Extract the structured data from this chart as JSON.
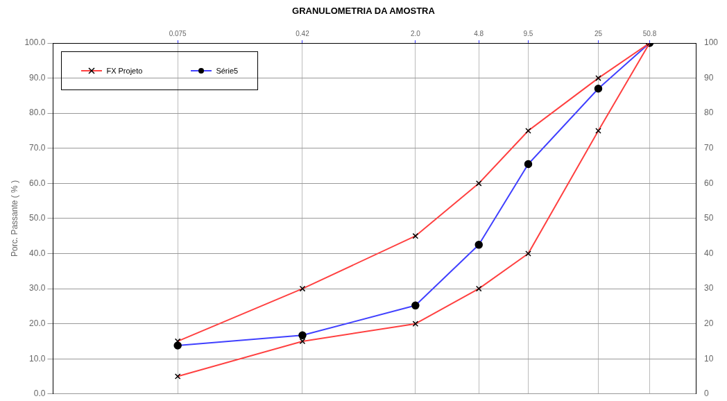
{
  "chart_data": {
    "type": "line",
    "title": "GRANULOMETRIA DA AMOSTRA",
    "ylabel": "Porc. Passante ( % )",
    "x": [
      0.075,
      0.42,
      2.0,
      4.8,
      9.5,
      25,
      50.8
    ],
    "series": [
      {
        "name": "FX Projeto",
        "color": "#ff4040",
        "marker": "cross",
        "values": [
          15,
          30,
          45,
          60,
          75,
          90,
          100
        ]
      },
      {
        "color": "#ff4040",
        "marker": "cross",
        "values": [
          5,
          15,
          20,
          30,
          40,
          75,
          100
        ]
      },
      {
        "name": "Série5",
        "color": "#4040ff",
        "marker": "circle",
        "values": [
          13.8,
          16.7,
          25.2,
          42.5,
          65.5,
          87,
          100
        ]
      }
    ],
    "xlim": [
      0.0134,
      97
    ],
    "log": "x",
    "xticks": [
      0.075,
      0.42,
      {
        "value": 2.0,
        "label": "2.0"
      },
      4.8,
      9.5,
      25,
      50.8
    ],
    "ylim": [
      0,
      100
    ],
    "yticks": [
      {
        "value": 0,
        "label": "0.0"
      },
      {
        "value": 10,
        "label": "10.0"
      },
      {
        "value": 20,
        "label": "20.0"
      },
      {
        "value": 30,
        "label": "30.0"
      },
      {
        "value": 40,
        "label": "40.0"
      },
      {
        "value": 50,
        "label": "50.0"
      },
      {
        "value": 60,
        "label": "60.0"
      },
      {
        "value": 70,
        "label": "70.0"
      },
      {
        "value": 80,
        "label": "80.0"
      },
      {
        "value": 90,
        "label": "90.0"
      },
      {
        "value": 100,
        "label": "100.0"
      }
    ],
    "y2lim": [
      0,
      100
    ],
    "y2ticks": [
      0,
      10,
      20,
      30,
      40,
      50,
      60,
      70,
      80,
      90,
      100
    ],
    "grid": true,
    "legend": "top left"
  }
}
